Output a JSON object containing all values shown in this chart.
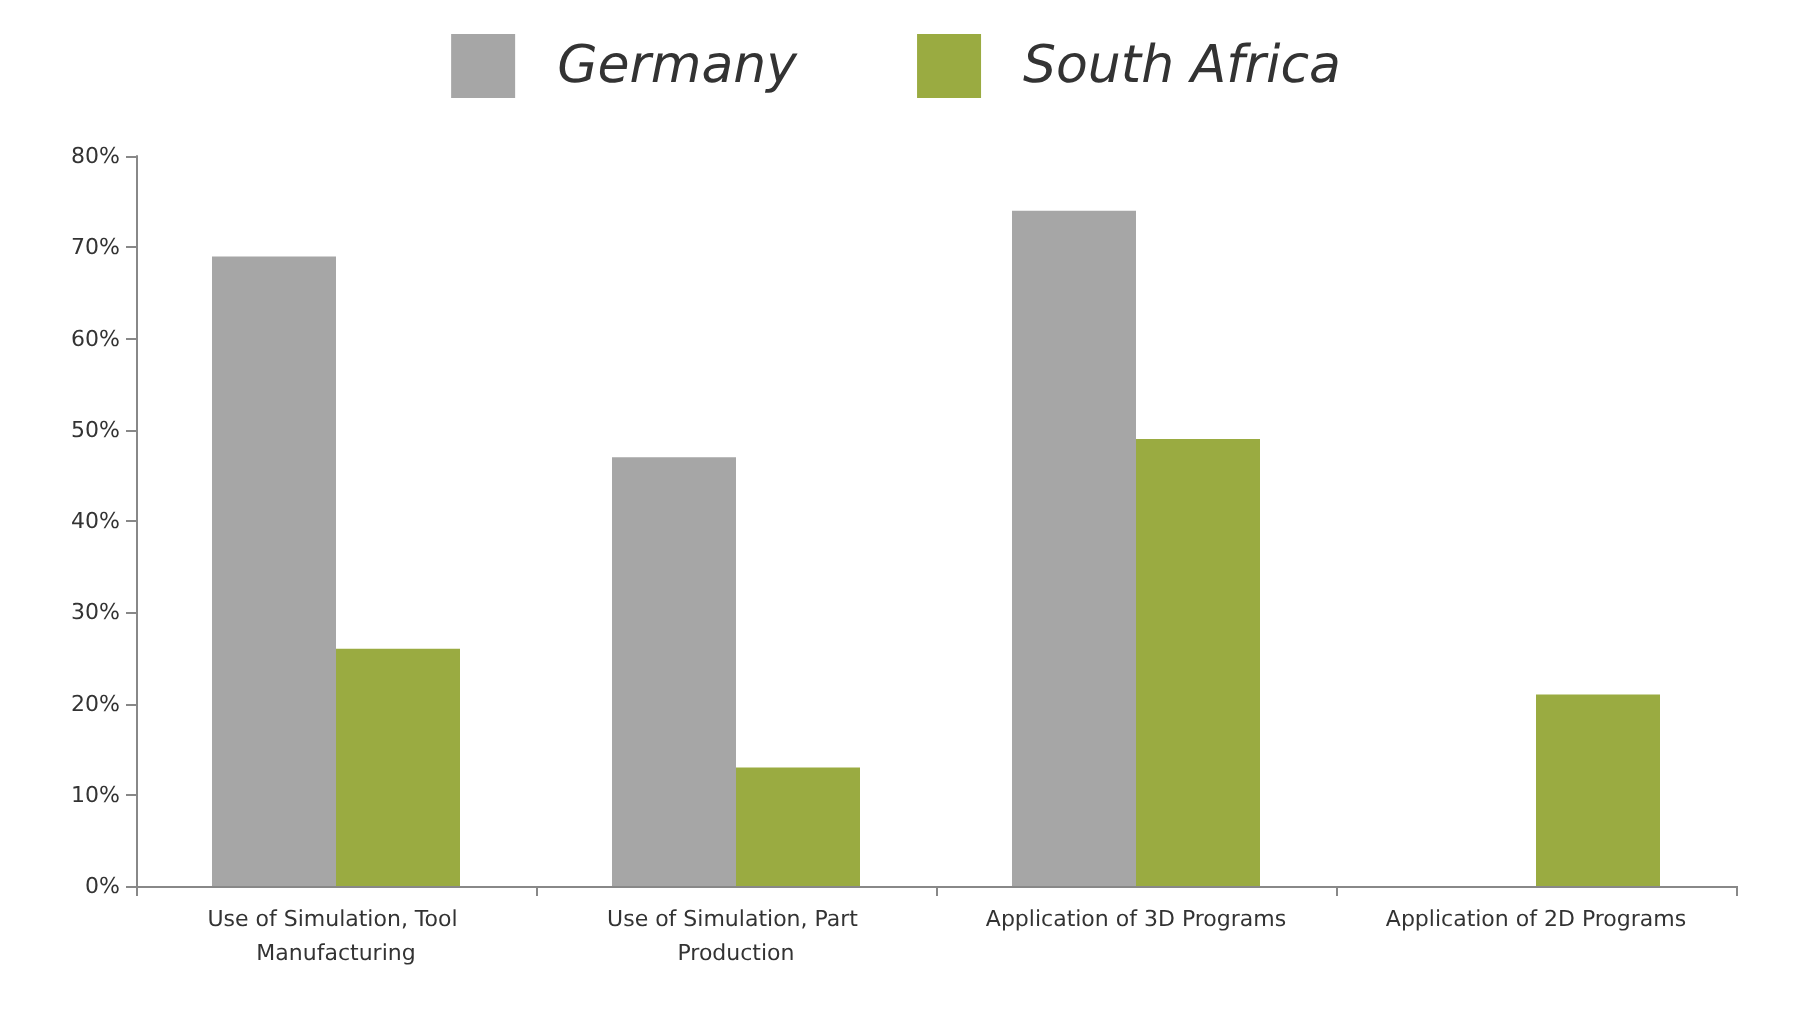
{
  "chart_data": {
    "type": "bar",
    "categories": [
      "Use of Simulation, Tool Manufacturing",
      "Use of Simulation, Part Production",
      "Application of 3D Programs",
      "Application of 2D Programs"
    ],
    "series": [
      {
        "name": "Germany",
        "color": "#a6a6a6",
        "values": [
          69,
          47,
          74,
          0
        ]
      },
      {
        "name": "South Africa",
        "color": "#9aab41",
        "values": [
          26,
          13,
          49,
          21
        ]
      }
    ],
    "ylim": [
      0,
      80
    ],
    "yticks": [
      {
        "value": 0,
        "label": "0%"
      },
      {
        "value": 10,
        "label": "10%"
      },
      {
        "value": 20,
        "label": "20%"
      },
      {
        "value": 30,
        "label": "30%"
      },
      {
        "value": 40,
        "label": "40%"
      },
      {
        "value": 50,
        "label": "50%"
      },
      {
        "value": 60,
        "label": "60%"
      },
      {
        "value": 70,
        "label": "70%"
      },
      {
        "value": 80,
        "label": "80%"
      }
    ],
    "grid": false,
    "legend": "top"
  }
}
